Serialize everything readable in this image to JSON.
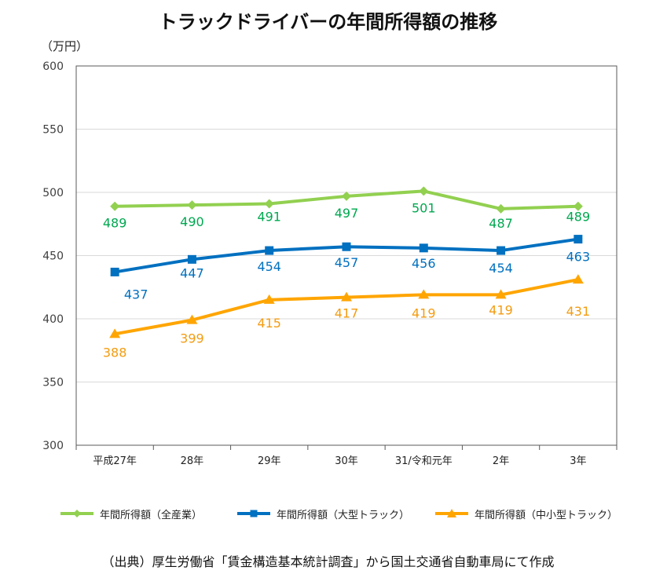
{
  "title": "トラックドライバーの年間所得額の推移",
  "unit_label": "（万円）",
  "source_note": "（出典）厚生労働省「賃金構造基本統計調査」から国土交通省自動車局にて作成",
  "chart_data": {
    "type": "line",
    "title": "トラックドライバーの年間所得額の推移",
    "ylabel": "（万円）",
    "xlabel": "",
    "categories": [
      "平成27年",
      "28年",
      "29年",
      "30年",
      "31/令和元年",
      "2年",
      "3年"
    ],
    "ylim": [
      300,
      600
    ],
    "yticks": [
      300,
      350,
      400,
      450,
      500,
      550,
      600
    ],
    "grid": true,
    "legend": "bottom",
    "series": [
      {
        "name": "年間所得額（全産業）",
        "values": [
          489,
          490,
          491,
          497,
          501,
          487,
          489
        ],
        "color": "#92d050",
        "marker": "diamond",
        "label_color": "#00a850"
      },
      {
        "name": "年間所得額（大型トラック）",
        "values": [
          437,
          447,
          454,
          457,
          456,
          454,
          463
        ],
        "color": "#0070c0",
        "marker": "square",
        "label_color": "#0070c0"
      },
      {
        "name": "年間所得額（中小型トラック）",
        "values": [
          388,
          399,
          415,
          417,
          419,
          419,
          431
        ],
        "color": "#ffa500",
        "marker": "triangle",
        "label_color": "#f39c12"
      }
    ]
  }
}
